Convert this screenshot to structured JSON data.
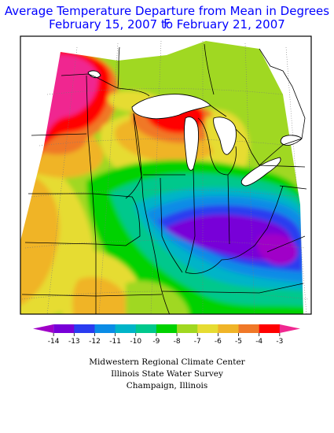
{
  "title": {
    "line1": "Average Temperature Departure from Mean in Degrees F",
    "line2": "February 15, 2007 to February 21, 2007"
  },
  "legend": {
    "ticks": [
      "-14",
      "-13",
      "-12",
      "-11",
      "-10",
      "-9",
      "-8",
      "-7",
      "-6",
      "-5",
      "-4",
      "-3"
    ],
    "colors": [
      "#a000c8",
      "#7800d8",
      "#2a3cf0",
      "#0a8ce6",
      "#00b4c8",
      "#00c88c",
      "#00d200",
      "#a0d820",
      "#e6dc32",
      "#f0b428",
      "#f07828",
      "#ff0000",
      "#f02890"
    ]
  },
  "credits": {
    "line1": "Midwestern Regional Climate Center",
    "line2": "Illinois State Water Survey",
    "line3": "Champaign, Illinois"
  }
}
